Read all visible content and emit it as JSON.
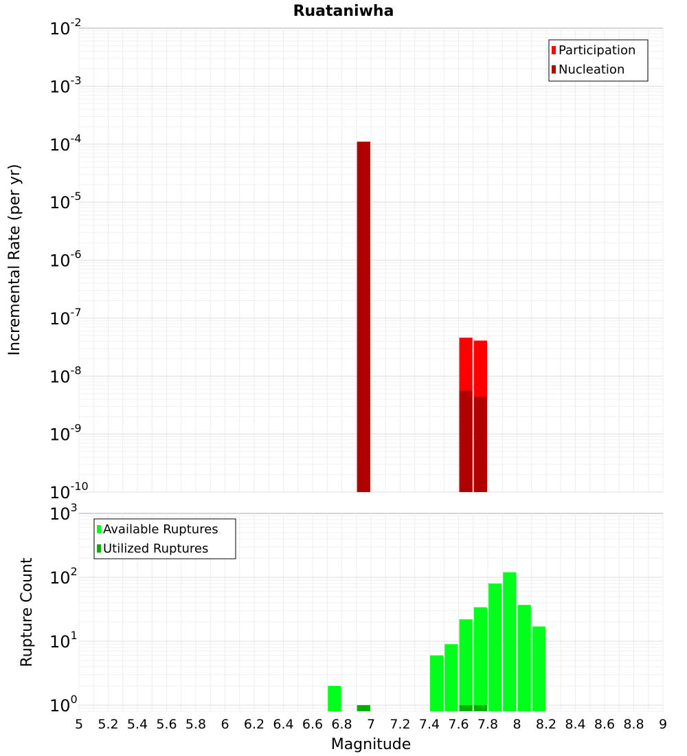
{
  "chart_data": [
    {
      "type": "bar",
      "title": "Ruataniwha",
      "ylabel": "Incremental Rate (per yr)",
      "xlabel": "",
      "ylog": true,
      "ylim": [
        1e-10,
        0.01
      ],
      "xlim": [
        5,
        9
      ],
      "bin_width": 0.1,
      "grid": true,
      "legend_position": "top-right",
      "series": [
        {
          "name": "Participation",
          "color": "#ff0000",
          "points": [
            {
              "x": 6.95,
              "y": 0.00011
            },
            {
              "x": 7.65,
              "y": 4.6e-08
            },
            {
              "x": 7.75,
              "y": 4.1e-08
            }
          ]
        },
        {
          "name": "Nucleation",
          "color": "#b00000",
          "points": [
            {
              "x": 6.95,
              "y": 0.00011
            },
            {
              "x": 7.65,
              "y": 5.6e-09
            },
            {
              "x": 7.75,
              "y": 4.4e-09
            }
          ]
        }
      ]
    },
    {
      "type": "bar",
      "title": "",
      "ylabel": "Rupture Count",
      "xlabel": "Magnitude",
      "ylog": true,
      "ylim": [
        0.8,
        1000
      ],
      "xlim": [
        5,
        9
      ],
      "bin_width": 0.1,
      "grid": true,
      "legend_position": "top-left",
      "x_ticks": [
        "5",
        "5.2",
        "5.4",
        "5.6",
        "5.8",
        "6",
        "6.2",
        "6.4",
        "6.6",
        "6.8",
        "7",
        "7.2",
        "7.4",
        "7.6",
        "7.8",
        "8",
        "8.2",
        "8.4",
        "8.6",
        "8.8",
        "9"
      ],
      "series": [
        {
          "name": "Available Ruptures",
          "color": "#00ff1a",
          "points": [
            {
              "x": 6.75,
              "y": 2
            },
            {
              "x": 6.95,
              "y": 1
            },
            {
              "x": 7.45,
              "y": 6
            },
            {
              "x": 7.55,
              "y": 9
            },
            {
              "x": 7.65,
              "y": 22
            },
            {
              "x": 7.75,
              "y": 34
            },
            {
              "x": 7.85,
              "y": 80
            },
            {
              "x": 7.95,
              "y": 120
            },
            {
              "x": 8.05,
              "y": 37
            },
            {
              "x": 8.15,
              "y": 17
            }
          ]
        },
        {
          "name": "Utilized Ruptures",
          "color": "#00b000",
          "points": [
            {
              "x": 6.95,
              "y": 1
            },
            {
              "x": 7.65,
              "y": 1
            },
            {
              "x": 7.75,
              "y": 1
            }
          ]
        }
      ]
    }
  ]
}
